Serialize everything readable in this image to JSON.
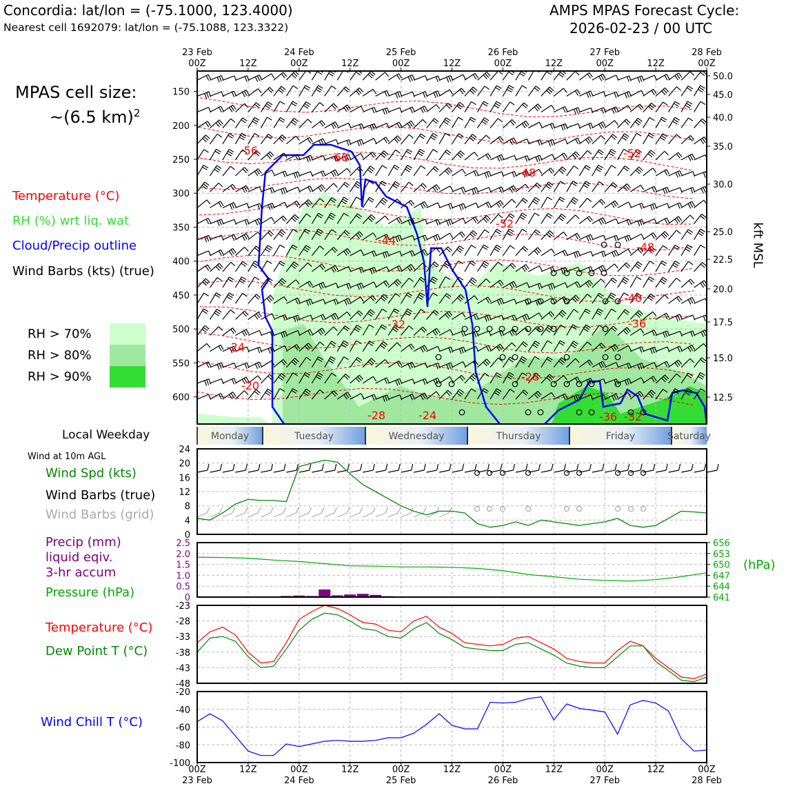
{
  "header": {
    "location_line": "Concordia: lat/lon = (-75.1000, 123.4000)",
    "cell_line": "Nearest cell 1692079: lat/lon = (-75.1088, 123.3322)",
    "model_line": "AMPS MPAS Forecast Cycle:",
    "cycle_line": "2026-02-23 / 00 UTC"
  },
  "side_labels": {
    "cell_size_1": "MPAS cell size:",
    "cell_size_2": "~(6.5 km)",
    "cell_size_sup": "2",
    "temperature": "Temperature (°C)",
    "rh": "RH (%) wrt liq. wat",
    "cloud": "Cloud/Precip outline",
    "barbs": "Wind Barbs (kts) (true)",
    "rh70": "RH > 70%",
    "rh80": "RH > 80%",
    "rh90": "RH > 90%",
    "local_weekday": "Local Weekday",
    "wind10m": "Wind at 10m AGL",
    "wind_spd": "Wind Spd (kts)",
    "wind_barbs_true": "Wind Barbs (true)",
    "wind_barbs_grid": "Wind Barbs (grid)",
    "precip1": "Precip (mm)",
    "precip2": "liquid eqiv.",
    "precip3": "3-hr accum",
    "pressure": "Pressure (hPa)",
    "temp2": "Temperature (°C)",
    "dewpoint": "Dew Point T (°C)",
    "windchill": "Wind Chill T (°C)",
    "hpa_unit": "(hPa)",
    "kft": "kft MSL"
  },
  "colors": {
    "temp": "#ff0000",
    "rh70": "#ccffcc",
    "rh80": "#a0e8a0",
    "rh90": "#33dd33",
    "cloud": "#0000ff",
    "wind_spd": "#008800",
    "grid_barb": "#aaaaaa",
    "precip": "#800080",
    "pressure": "#00aa00",
    "dewpoint": "#008800",
    "windchill": "#0000ff"
  },
  "chart_data": [
    {
      "type": "heatmap",
      "name": "cross-section",
      "top_x_ticks": [
        {
          "day": "23 Feb",
          "hour": "00Z"
        },
        {
          "day": "",
          "hour": "12Z"
        },
        {
          "day": "24 Feb",
          "hour": "00Z"
        },
        {
          "day": "",
          "hour": "12Z"
        },
        {
          "day": "25 Feb",
          "hour": "00Z"
        },
        {
          "day": "",
          "hour": "12Z"
        },
        {
          "day": "26 Feb",
          "hour": "00Z"
        },
        {
          "day": "",
          "hour": "12Z"
        },
        {
          "day": "27 Feb",
          "hour": "00Z"
        },
        {
          "day": "",
          "hour": "12Z"
        },
        {
          "day": "28 Feb",
          "hour": "00Z"
        }
      ],
      "y_left_ticks": [
        "150",
        "200",
        "250",
        "300",
        "350",
        "400",
        "450",
        "500",
        "550",
        "600"
      ],
      "y_right_ticks": [
        "50.0",
        "45.0",
        "40.0",
        "35.0",
        "30.0",
        "25.0",
        "22.5",
        "20.0",
        "17.5",
        "15.0",
        "12.5"
      ],
      "temperature_labels": [
        "-56",
        "-60",
        "-52",
        "-48",
        "-52",
        "-44",
        "-48",
        "-40",
        "-32",
        "-36",
        "-24",
        "-28",
        "-20",
        "-28",
        "-24",
        "-36",
        "-32"
      ]
    },
    {
      "type": "table",
      "name": "local-weekday",
      "days": [
        "Monday",
        "Tuesday",
        "Wednesday",
        "Thursday",
        "Friday",
        "Saturday"
      ]
    },
    {
      "type": "line",
      "name": "wind-speed",
      "ylim": [
        0,
        24
      ],
      "y_ticks": [
        "24",
        "20",
        "16",
        "12",
        "8",
        "4",
        "0"
      ],
      "x_hours": [
        0,
        3,
        6,
        9,
        12,
        15,
        18,
        21,
        24,
        27,
        30,
        33,
        36,
        39,
        42,
        45,
        48,
        51,
        54,
        57,
        60,
        63,
        66,
        69,
        72,
        75,
        78,
        81,
        84,
        87,
        90,
        93,
        96,
        99,
        102,
        105,
        108,
        111,
        114,
        117,
        120
      ],
      "values": [
        4.5,
        4,
        6,
        8.5,
        9.8,
        9.5,
        9.5,
        9.2,
        19,
        20,
        20.8,
        20.3,
        17,
        14,
        12,
        10,
        8,
        6.5,
        5.5,
        6.5,
        6.5,
        6,
        3,
        2,
        2.5,
        3.5,
        2.5,
        4,
        3.5,
        3,
        2.5,
        3,
        3.5,
        4.5,
        2.5,
        2,
        2.5,
        4.5,
        6.5,
        6.3,
        6
      ]
    },
    {
      "type": "bar",
      "name": "precip",
      "ylim": [
        0,
        2.5
      ],
      "y_ticks": [
        "2.5",
        "2.0",
        "1.5",
        "1.0",
        "0.5",
        "0"
      ],
      "x_hours": [
        21,
        24,
        27,
        30,
        33,
        36,
        39,
        42,
        45
      ],
      "values": [
        0.05,
        0.07,
        0.05,
        0.35,
        0.08,
        0.12,
        0.15,
        0.1,
        0.04
      ]
    },
    {
      "type": "line",
      "name": "pressure",
      "ylim": [
        641,
        656
      ],
      "y_ticks": [
        "656",
        "653",
        "650",
        "647",
        "644",
        "641"
      ],
      "x_hours": [
        0,
        6,
        12,
        18,
        24,
        30,
        36,
        42,
        48,
        54,
        60,
        66,
        72,
        78,
        84,
        90,
        96,
        102,
        108,
        114,
        120
      ],
      "values": [
        652,
        651.9,
        651.7,
        651.2,
        650.8,
        650.2,
        649.6,
        649.5,
        649.3,
        649.3,
        649.2,
        648.9,
        648.3,
        647.2,
        646.6,
        645.9,
        645.6,
        645.4,
        645.8,
        646.6,
        647.7
      ]
    },
    {
      "type": "line",
      "name": "temperature-dewpoint",
      "ylim": [
        -48,
        -23
      ],
      "y_ticks": [
        "-23",
        "-28",
        "-33",
        "-38",
        "-43",
        "-48"
      ],
      "x_hours": [
        0,
        3,
        6,
        9,
        12,
        15,
        18,
        21,
        24,
        27,
        30,
        33,
        36,
        39,
        42,
        45,
        48,
        51,
        54,
        57,
        60,
        63,
        66,
        69,
        72,
        75,
        78,
        81,
        84,
        87,
        90,
        93,
        96,
        99,
        102,
        105,
        108,
        111,
        114,
        117,
        120
      ],
      "series": [
        {
          "name": "Temperature",
          "values": [
            -35,
            -31.5,
            -30,
            -32.5,
            -38,
            -41.5,
            -41,
            -35,
            -27.5,
            -25,
            -23,
            -24,
            -26,
            -28.5,
            -29,
            -31,
            -31.5,
            -28,
            -26.5,
            -30,
            -32,
            -35,
            -35.5,
            -36,
            -35.5,
            -33.5,
            -33,
            -35,
            -37,
            -40,
            -41,
            -41.5,
            -41.5,
            -37.5,
            -34.5,
            -36,
            -40,
            -43,
            -46,
            -46.5,
            -45
          ]
        },
        {
          "name": "Dew Point",
          "values": [
            -38,
            -33.5,
            -33,
            -34.5,
            -39.5,
            -43,
            -42.5,
            -37,
            -31,
            -27.5,
            -25.5,
            -26,
            -28,
            -30.5,
            -31,
            -33,
            -33.5,
            -30.5,
            -28.5,
            -32,
            -34,
            -36.5,
            -37,
            -37.5,
            -37.5,
            -35.5,
            -35,
            -37,
            -39,
            -41.5,
            -42.5,
            -43,
            -43,
            -39.5,
            -36,
            -36,
            -41,
            -44,
            -47,
            -47.5,
            -46
          ]
        }
      ]
    },
    {
      "type": "line",
      "name": "wind-chill",
      "ylim": [
        -100,
        -20
      ],
      "y_ticks": [
        "-20",
        "-40",
        "-60",
        "-80",
        "-100"
      ],
      "bottom_x_ticks": [
        {
          "hour": "00Z",
          "day": "23 Feb"
        },
        {
          "hour": "12Z",
          "day": ""
        },
        {
          "hour": "00Z",
          "day": "24 Feb"
        },
        {
          "hour": "12Z",
          "day": ""
        },
        {
          "hour": "00Z",
          "day": "25 Feb"
        },
        {
          "hour": "12Z",
          "day": ""
        },
        {
          "hour": "00Z",
          "day": "26 Feb"
        },
        {
          "hour": "12Z",
          "day": ""
        },
        {
          "hour": "00Z",
          "day": "27 Feb"
        },
        {
          "hour": "12Z",
          "day": ""
        },
        {
          "hour": "00Z",
          "day": "28 Feb"
        }
      ],
      "x_hours": [
        0,
        3,
        6,
        9,
        12,
        15,
        18,
        21,
        24,
        27,
        30,
        33,
        36,
        39,
        42,
        45,
        48,
        51,
        54,
        57,
        60,
        63,
        66,
        69,
        72,
        75,
        78,
        81,
        84,
        87,
        90,
        93,
        96,
        99,
        102,
        105,
        108,
        111,
        114,
        117,
        120
      ],
      "values": [
        -54,
        -45,
        -53,
        -70,
        -87,
        -92,
        -92,
        -79,
        -82,
        -79,
        -76,
        -75,
        -76,
        -76,
        -75,
        -72,
        -72,
        -67,
        -57,
        -45,
        -58,
        -62,
        -62,
        -32,
        -33,
        -32,
        -28,
        -26,
        -52,
        -34,
        -39,
        -41,
        -43,
        -68,
        -35,
        -30,
        -33,
        -42,
        -73,
        -87,
        -86
      ]
    }
  ]
}
